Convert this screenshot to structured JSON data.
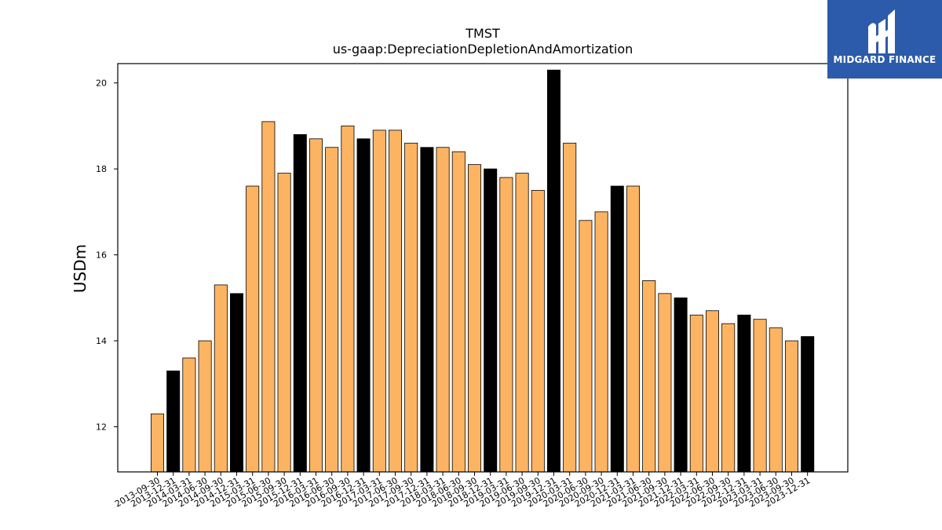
{
  "logo": {
    "text": "MIDGARD FINANCE",
    "bg_color": "#2d5bab",
    "text_color": "#ffffff"
  },
  "chart_data": {
    "type": "bar",
    "title": "TMST",
    "subtitle": "us-gaap:DepreciationDepletionAndAmortization",
    "ylabel": "USDm",
    "xlabel": "",
    "ylim": [
      10.95,
      20.45
    ],
    "yticks": [
      12,
      14,
      16,
      18,
      20
    ],
    "grid": false,
    "categories": [
      "2013-09-30",
      "2013-12-31",
      "2014-03-31",
      "2014-06-30",
      "2014-09-30",
      "2014-12-31",
      "2015-03-31",
      "2015-06-30",
      "2015-09-30",
      "2015-12-31",
      "2016-03-31",
      "2016-06-30",
      "2016-09-30",
      "2016-12-31",
      "2017-03-31",
      "2017-06-30",
      "2017-09-30",
      "2017-12-31",
      "2018-03-31",
      "2018-06-30",
      "2018-09-30",
      "2018-12-31",
      "2019-03-31",
      "2019-06-30",
      "2019-09-30",
      "2019-12-31",
      "2020-03-31",
      "2020-06-30",
      "2020-09-30",
      "2020-12-31",
      "2021-03-31",
      "2021-06-30",
      "2021-09-30",
      "2021-12-31",
      "2022-03-31",
      "2022-06-30",
      "2022-09-30",
      "2022-12-31",
      "2023-03-31",
      "2023-06-30",
      "2023-09-30",
      "2023-12-31"
    ],
    "values": [
      12.3,
      13.3,
      13.6,
      14.0,
      15.3,
      15.1,
      17.6,
      19.1,
      17.9,
      18.8,
      18.7,
      18.5,
      19.0,
      18.7,
      18.9,
      18.9,
      18.6,
      18.5,
      18.5,
      18.4,
      18.1,
      18.0,
      17.8,
      17.9,
      17.5,
      20.3,
      18.6,
      16.8,
      17.0,
      17.6,
      17.6,
      15.4,
      15.1,
      15.0,
      14.6,
      14.7,
      14.4,
      14.6,
      14.5,
      14.3,
      14.0,
      14.1
    ],
    "highlight": [
      false,
      true,
      false,
      false,
      false,
      true,
      false,
      false,
      false,
      true,
      false,
      false,
      false,
      true,
      false,
      false,
      false,
      true,
      false,
      false,
      false,
      true,
      false,
      false,
      false,
      true,
      false,
      false,
      false,
      true,
      false,
      false,
      false,
      true,
      false,
      false,
      false,
      true,
      false,
      false,
      false,
      true
    ],
    "colors": {
      "bar": "#fdb462",
      "highlight": "#000000",
      "edge": "#000000"
    }
  }
}
